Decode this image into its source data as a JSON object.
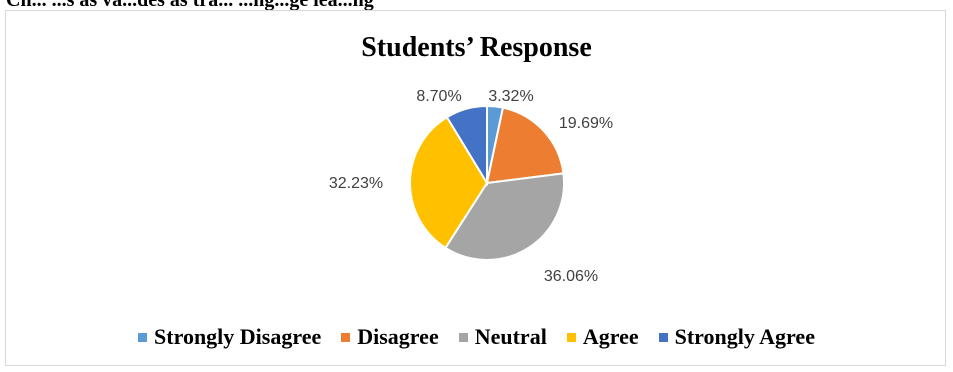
{
  "header_fragment": "Ch... ...s as va...des as tra... ...ng...ge lea...ng",
  "chart_data": {
    "type": "pie",
    "title": "Students’ Response",
    "legend_position": "bottom",
    "slices": [
      {
        "name": "Strongly Disagree",
        "value": 3.32,
        "label": "3.32%",
        "color": "#5b9bd5"
      },
      {
        "name": "Disagree",
        "value": 19.69,
        "label": "19.69%",
        "color": "#ed7d31"
      },
      {
        "name": "Neutral",
        "value": 36.06,
        "label": "36.06%",
        "color": "#a5a5a5"
      },
      {
        "name": "Agree",
        "value": 32.23,
        "label": "32.23%",
        "color": "#ffc000"
      },
      {
        "name": "Strongly Agree",
        "value": 8.7,
        "label": "8.70%",
        "color": "#4472c4"
      }
    ]
  }
}
